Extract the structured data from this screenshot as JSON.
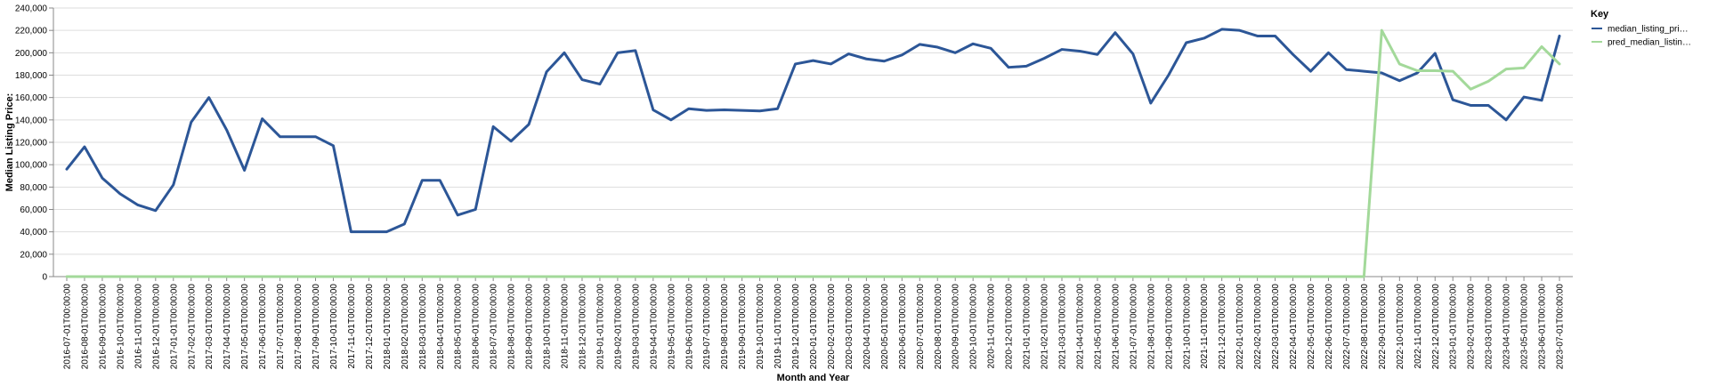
{
  "chart_data": {
    "type": "line",
    "xlabel": "Month and Year",
    "ylabel": "Median Listing Price:",
    "ylim": [
      0,
      240000
    ],
    "y_ticks": [
      "0",
      "20,000",
      "40,000",
      "60,000",
      "80,000",
      "100,000",
      "120,000",
      "140,000",
      "160,000",
      "180,000",
      "200,000",
      "220,000",
      "240,000"
    ],
    "grid": true,
    "legend": {
      "title": "Key",
      "placement": "top-right"
    },
    "x": [
      "2016-07-01T00:00:00",
      "2016-08-01T00:00:00",
      "2016-09-01T00:00:00",
      "2016-10-01T00:00:00",
      "2016-11-01T00:00:00",
      "2016-12-01T00:00:00",
      "2017-01-01T00:00:00",
      "2017-02-01T00:00:00",
      "2017-03-01T00:00:00",
      "2017-04-01T00:00:00",
      "2017-05-01T00:00:00",
      "2017-06-01T00:00:00",
      "2017-07-01T00:00:00",
      "2017-08-01T00:00:00",
      "2017-09-01T00:00:00",
      "2017-10-01T00:00:00",
      "2017-11-01T00:00:00",
      "2017-12-01T00:00:00",
      "2018-01-01T00:00:00",
      "2018-02-01T00:00:00",
      "2018-03-01T00:00:00",
      "2018-04-01T00:00:00",
      "2018-05-01T00:00:00",
      "2018-06-01T00:00:00",
      "2018-07-01T00:00:00",
      "2018-08-01T00:00:00",
      "2018-09-01T00:00:00",
      "2018-10-01T00:00:00",
      "2018-11-01T00:00:00",
      "2018-12-01T00:00:00",
      "2019-01-01T00:00:00",
      "2019-02-01T00:00:00",
      "2019-03-01T00:00:00",
      "2019-04-01T00:00:00",
      "2019-05-01T00:00:00",
      "2019-06-01T00:00:00",
      "2019-07-01T00:00:00",
      "2019-08-01T00:00:00",
      "2019-09-01T00:00:00",
      "2019-10-01T00:00:00",
      "2019-11-01T00:00:00",
      "2019-12-01T00:00:00",
      "2020-01-01T00:00:00",
      "2020-02-01T00:00:00",
      "2020-03-01T00:00:00",
      "2020-04-01T00:00:00",
      "2020-05-01T00:00:00",
      "2020-06-01T00:00:00",
      "2020-07-01T00:00:00",
      "2020-08-01T00:00:00",
      "2020-09-01T00:00:00",
      "2020-10-01T00:00:00",
      "2020-11-01T00:00:00",
      "2020-12-01T00:00:00",
      "2021-01-01T00:00:00",
      "2021-02-01T00:00:00",
      "2021-03-01T00:00:00",
      "2021-04-01T00:00:00",
      "2021-05-01T00:00:00",
      "2021-06-01T00:00:00",
      "2021-07-01T00:00:00",
      "2021-08-01T00:00:00",
      "2021-09-01T00:00:00",
      "2021-10-01T00:00:00",
      "2021-11-01T00:00:00",
      "2021-12-01T00:00:00",
      "2022-01-01T00:00:00",
      "2022-02-01T00:00:00",
      "2022-03-01T00:00:00",
      "2022-04-01T00:00:00",
      "2022-05-01T00:00:00",
      "2022-06-01T00:00:00",
      "2022-07-01T00:00:00",
      "2022-08-01T00:00:00",
      "2022-09-01T00:00:00",
      "2022-10-01T00:00:00",
      "2022-11-01T00:00:00",
      "2022-12-01T00:00:00",
      "2023-01-01T00:00:00",
      "2023-02-01T00:00:00",
      "2023-03-01T00:00:00",
      "2023-04-01T00:00:00",
      "2023-05-01T00:00:00",
      "2023-06-01T00:00:00",
      "2023-07-01T00:00:00"
    ],
    "series": [
      {
        "name": "median_listing_pri…",
        "color": "#2c5697",
        "values": [
          96000,
          116000,
          88000,
          74000,
          64000,
          59000,
          82000,
          138000,
          160000,
          131000,
          95000,
          141000,
          125000,
          125000,
          125000,
          117000,
          40000,
          40000,
          40000,
          47000,
          86000,
          86000,
          55000,
          60000,
          134000,
          121000,
          136000,
          183000,
          200000,
          176000,
          172000,
          200000,
          202000,
          149000,
          140000,
          150000,
          148500,
          149000,
          148500,
          148000,
          150000,
          190000,
          193000,
          190000,
          199000,
          194500,
          192500,
          198000,
          207500,
          205000,
          200000,
          208000,
          204000,
          187000,
          188000,
          195000,
          203000,
          201500,
          198500,
          218000,
          199000,
          155000,
          180000,
          209000,
          213000,
          221000,
          220000,
          215000,
          215000,
          198500,
          183500,
          200000,
          185000,
          183500,
          182000,
          175000,
          182000,
          199500,
          158000,
          153000,
          153000,
          140000,
          160500,
          157500,
          215000
        ]
      },
      {
        "name": "pred_median_listin…",
        "color": "#a3d99a",
        "values": [
          0,
          0,
          0,
          0,
          0,
          0,
          0,
          0,
          0,
          0,
          0,
          0,
          0,
          0,
          0,
          0,
          0,
          0,
          0,
          0,
          0,
          0,
          0,
          0,
          0,
          0,
          0,
          0,
          0,
          0,
          0,
          0,
          0,
          0,
          0,
          0,
          0,
          0,
          0,
          0,
          0,
          0,
          0,
          0,
          0,
          0,
          0,
          0,
          0,
          0,
          0,
          0,
          0,
          0,
          0,
          0,
          0,
          0,
          0,
          0,
          0,
          0,
          0,
          0,
          0,
          0,
          0,
          0,
          0,
          0,
          0,
          0,
          0,
          0,
          220000,
          190000,
          184000,
          184000,
          183500,
          167500,
          174500,
          185500,
          186500,
          205500,
          190000
        ]
      }
    ]
  }
}
